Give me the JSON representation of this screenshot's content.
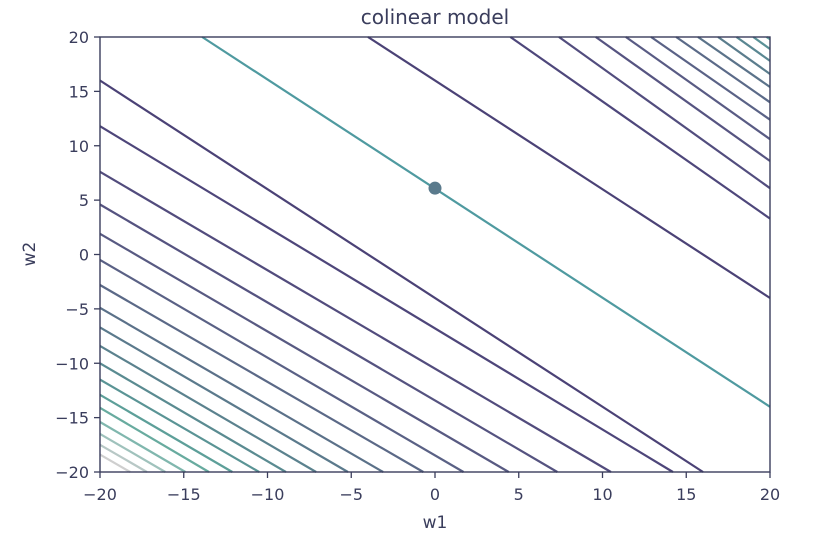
{
  "chart_data": {
    "type": "contour",
    "title": "colinear model",
    "xlabel": "w1",
    "ylabel": "w2",
    "xlim": [
      -20,
      20
    ],
    "ylim": [
      -20,
      20
    ],
    "xticks": [
      -20,
      -15,
      -10,
      -5,
      0,
      5,
      10,
      15,
      20
    ],
    "yticks": [
      -20,
      -15,
      -10,
      -5,
      0,
      5,
      10,
      15,
      20
    ],
    "xtick_labels": [
      "−20",
      "−15",
      "−10",
      "−5",
      "0",
      "5",
      "10",
      "15",
      "20"
    ],
    "ytick_labels": [
      "−20",
      "−15",
      "−10",
      "−5",
      "0",
      "5",
      "10",
      "15",
      "20"
    ],
    "grid": false,
    "contour_lines": [
      {
        "color": "#cfcfcf",
        "points": [
          [
            -20,
            -18.4
          ],
          [
            -18.2,
            -20
          ]
        ]
      },
      {
        "color": "#b8c8c6",
        "points": [
          [
            -20,
            -17.5
          ],
          [
            -17.2,
            -20
          ]
        ]
      },
      {
        "color": "#9fc2bc",
        "points": [
          [
            -20,
            -16.5
          ],
          [
            -16.1,
            -20
          ]
        ]
      },
      {
        "color": "#80b7ae",
        "points": [
          [
            -20,
            -15.4
          ],
          [
            -14.9,
            -20
          ]
        ]
      },
      {
        "color": "#68ab9f",
        "points": [
          [
            -20,
            -14.1
          ],
          [
            -13.5,
            -20
          ]
        ]
      },
      {
        "color": "#5d9f99",
        "points": [
          [
            -20,
            -12.9
          ],
          [
            -12.1,
            -20
          ]
        ]
      },
      {
        "color": "#5a9495",
        "points": [
          [
            -20,
            -11.5
          ],
          [
            -10.5,
            -20
          ]
        ]
      },
      {
        "color": "#5a8b91",
        "points": [
          [
            -20,
            -10.0
          ],
          [
            -8.9,
            -20
          ]
        ]
      },
      {
        "color": "#5b828e",
        "points": [
          [
            -20,
            -8.4
          ],
          [
            -7.1,
            -20
          ]
        ]
      },
      {
        "color": "#5b7a8c",
        "points": [
          [
            -20,
            -6.7
          ],
          [
            -5.2,
            -20
          ]
        ]
      },
      {
        "color": "#5b7189",
        "points": [
          [
            -20,
            -4.9
          ],
          [
            -3.1,
            -20
          ]
        ]
      },
      {
        "color": "#5b6987",
        "points": [
          [
            -20,
            -2.8
          ],
          [
            -0.7,
            -20
          ]
        ]
      },
      {
        "color": "#5a6185",
        "points": [
          [
            -20,
            -0.5
          ],
          [
            1.7,
            -20
          ]
        ]
      },
      {
        "color": "#585a82",
        "points": [
          [
            -20,
            1.9
          ],
          [
            4.4,
            -20
          ]
        ]
      },
      {
        "color": "#555380",
        "points": [
          [
            -20,
            4.6
          ],
          [
            7.3,
            -20
          ]
        ]
      },
      {
        "color": "#524c7d",
        "points": [
          [
            -20,
            7.6
          ],
          [
            10.5,
            -20
          ]
        ]
      },
      {
        "color": "#4e467a",
        "points": [
          [
            -20,
            11.8
          ],
          [
            14.2,
            -20
          ]
        ]
      },
      {
        "color": "#4b4276",
        "points": [
          [
            -20,
            16.0
          ],
          [
            16.0,
            -20
          ]
        ]
      },
      {
        "color": "#4b4276",
        "points": [
          [
            -4.0,
            20
          ],
          [
            20,
            -4.0
          ]
        ]
      },
      {
        "color": "#4e477b",
        "points": [
          [
            4.5,
            20
          ],
          [
            20,
            3.3
          ]
        ]
      },
      {
        "color": "#524d7e",
        "points": [
          [
            7.4,
            20
          ],
          [
            20,
            6.1
          ]
        ]
      },
      {
        "color": "#565481",
        "points": [
          [
            9.6,
            20
          ],
          [
            20,
            8.6
          ]
        ]
      },
      {
        "color": "#595b84",
        "points": [
          [
            11.4,
            20
          ],
          [
            20,
            10.6
          ]
        ]
      },
      {
        "color": "#5a6286",
        "points": [
          [
            12.9,
            20
          ],
          [
            20,
            12.4
          ]
        ]
      },
      {
        "color": "#5b6a88",
        "points": [
          [
            14.4,
            20
          ],
          [
            20,
            14.0
          ]
        ]
      },
      {
        "color": "#5b738a",
        "points": [
          [
            15.7,
            20
          ],
          [
            20,
            15.4
          ]
        ]
      },
      {
        "color": "#5b7d8d",
        "points": [
          [
            16.9,
            20
          ],
          [
            20,
            16.6
          ]
        ]
      },
      {
        "color": "#5a8792",
        "points": [
          [
            18.0,
            20
          ],
          [
            20,
            17.8
          ]
        ]
      },
      {
        "color": "#5a9196",
        "points": [
          [
            19.0,
            20
          ],
          [
            20,
            18.9
          ]
        ]
      },
      {
        "color": "#5a9c99",
        "points": [
          [
            19.8,
            20
          ],
          [
            20,
            19.8
          ]
        ]
      },
      {
        "color": "#4f9aa0",
        "points": [
          [
            -13.9,
            20
          ],
          [
            20,
            -14.0
          ]
        ]
      }
    ],
    "points": [
      {
        "x": 0.0,
        "y": 6.1,
        "color": "#5a7a8c"
      }
    ]
  }
}
